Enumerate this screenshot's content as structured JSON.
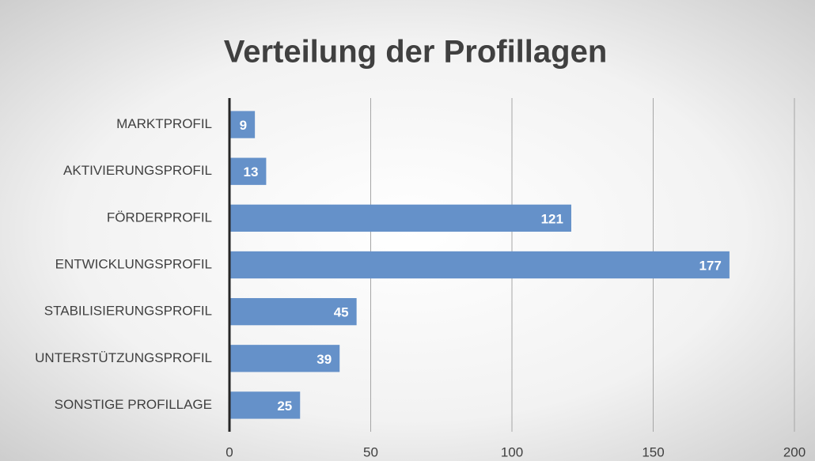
{
  "chart_data": {
    "type": "bar",
    "orientation": "horizontal",
    "title": "Verteilung der Profillagen",
    "categories": [
      "MARKTPROFIL",
      "AKTIVIERUNGSPROFIL",
      "FÖRDERPROFIL",
      "ENTWICKLUNGSPROFIL",
      "STABILISIERUNGSPROFIL",
      "UNTERSTÜTZUNGSPROFIL",
      "SONSTIGE PROFILLAGE"
    ],
    "values": [
      9,
      13,
      121,
      177,
      45,
      39,
      25
    ],
    "color": "#6591c9",
    "xlim": [
      0,
      200
    ],
    "xticks": [
      0,
      50,
      100,
      150,
      200
    ],
    "grid": true
  }
}
